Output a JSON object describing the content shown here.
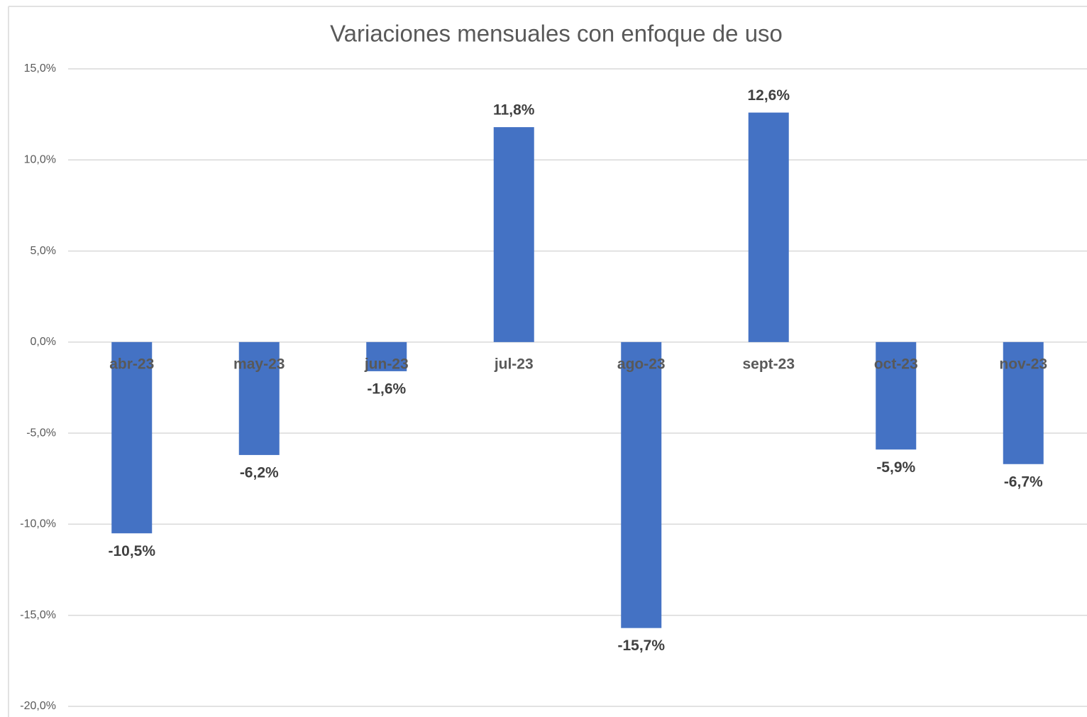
{
  "chart_data": {
    "type": "bar",
    "title": "Variaciones mensuales con enfoque de uso",
    "categories": [
      "abr-23",
      "may-23",
      "jun-23",
      "jul-23",
      "ago-23",
      "sept-23",
      "oct-23",
      "nov-23"
    ],
    "values": [
      -10.5,
      -6.2,
      -1.6,
      11.8,
      -15.7,
      12.6,
      -5.9,
      -6.7
    ],
    "value_labels": [
      "-10,5%",
      "-6,2%",
      "-1,6%",
      "11,8%",
      "-15,7%",
      "12,6%",
      "-5,9%",
      "-6,7%"
    ],
    "color": "#4472c4",
    "ylim": [
      -20,
      15
    ],
    "yticks": [
      {
        "value": -20,
        "label": "-20,0%"
      },
      {
        "value": -15,
        "label": "-15,0%"
      },
      {
        "value": -10,
        "label": "-10,0%"
      },
      {
        "value": -5,
        "label": "-5,0%"
      },
      {
        "value": 0,
        "label": "0,0%"
      },
      {
        "value": 5,
        "label": "5,0%"
      },
      {
        "value": 10,
        "label": "10,0%"
      },
      {
        "value": 15,
        "label": "15,0%"
      }
    ],
    "grid": true
  }
}
